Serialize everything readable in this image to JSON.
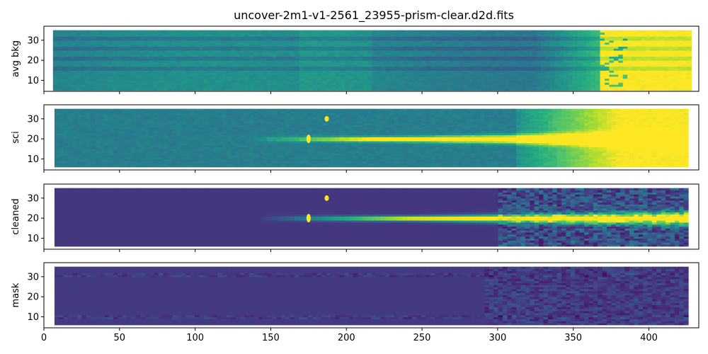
{
  "figure": {
    "title": "uncover-2m1-v1-2561_23955-prism-clear.d2d.fits"
  },
  "colors": {
    "viridis": [
      "#440154",
      "#472d7b",
      "#3b528b",
      "#2c728e",
      "#21918c",
      "#28ae80",
      "#5ec962",
      "#addc30",
      "#fde725"
    ],
    "background": "#ffffff",
    "axes_edge": "#000000"
  },
  "chart_data": [
    {
      "type": "heatmap",
      "name": "avg_bkg",
      "ylabel": "avg bkg",
      "xlim": [
        0,
        433
      ],
      "ylim": [
        4.5,
        37
      ],
      "xticks": [
        0,
        50,
        100,
        150,
        200,
        250,
        300,
        350,
        400
      ],
      "yticks": [
        10,
        20,
        30
      ],
      "colormap": "viridis",
      "coverage": {
        "x": [
          6,
          428
        ],
        "y": [
          5,
          35
        ]
      },
      "description_values": {
        "gradient_left": 0.45,
        "gradient_mid": 0.55,
        "gradient_right": 1.0,
        "rows_striped": [
          16,
          21,
          26,
          31
        ]
      }
    },
    {
      "type": "heatmap",
      "name": "sci",
      "ylabel": "sci",
      "xlim": [
        0,
        433
      ],
      "ylim": [
        4.5,
        37
      ],
      "xticks": [
        0,
        50,
        100,
        150,
        200,
        250,
        300,
        350,
        400
      ],
      "yticks": [
        10,
        20,
        30
      ],
      "colormap": "viridis",
      "coverage": {
        "x": [
          7,
          426
        ],
        "y": [
          6,
          35
        ]
      },
      "trace": {
        "y_center": 20,
        "x_start": 130,
        "x_bright": 240,
        "x_end": 426
      },
      "hot_pixels": [
        {
          "x": 175,
          "y": 20
        },
        {
          "x": 187,
          "y": 30
        }
      ]
    },
    {
      "type": "heatmap",
      "name": "cleaned",
      "ylabel": "cleaned",
      "xlim": [
        0,
        433
      ],
      "ylim": [
        4.5,
        37
      ],
      "xticks": [
        0,
        50,
        100,
        150,
        200,
        250,
        300,
        350,
        400
      ],
      "yticks": [
        10,
        20,
        30
      ],
      "colormap": "viridis",
      "coverage": {
        "x": [
          7,
          426
        ],
        "y": [
          6,
          35
        ]
      },
      "trace": {
        "y_center": 20,
        "x_start": 140,
        "x_bright": 240,
        "x_end": 426
      },
      "hot_pixels": [
        {
          "x": 175,
          "y": 20
        },
        {
          "x": 187,
          "y": 30
        }
      ]
    },
    {
      "type": "heatmap",
      "name": "mask",
      "ylabel": "mask",
      "xlim": [
        0,
        433
      ],
      "ylim": [
        4.5,
        37
      ],
      "xticks": [
        0,
        50,
        100,
        150,
        200,
        250,
        300,
        350,
        400
      ],
      "yticks": [
        10,
        20,
        30
      ],
      "colormap": "viridis",
      "coverage": {
        "x": [
          7,
          426
        ],
        "y": [
          6,
          35
        ]
      },
      "level": 0.17
    }
  ]
}
